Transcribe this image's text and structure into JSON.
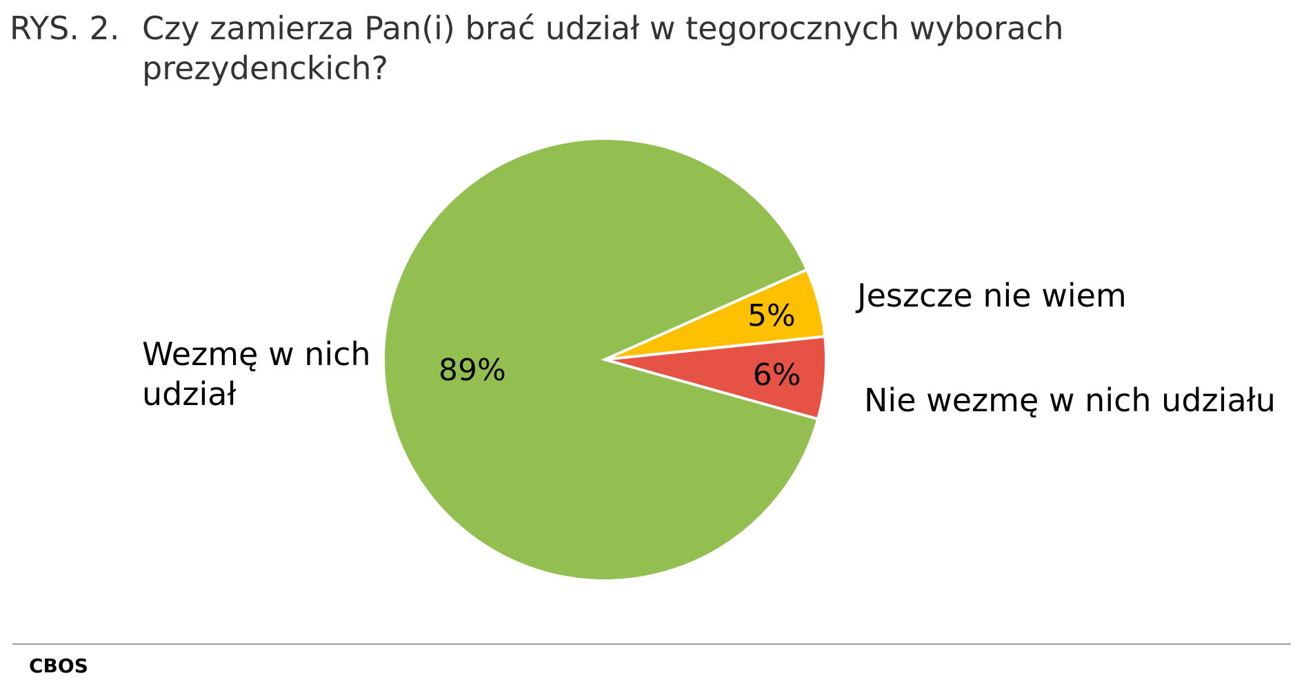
{
  "figure_label": "RYS. 2.",
  "chart_data": {
    "type": "pie",
    "title": "Czy zamierza Pan(i) brać udział w tegorocznych wyborach prezydenckich?",
    "categories": [
      "Jeszcze nie wiem",
      "Nie wezmę w nich udziału",
      "Wezmę w nich udział"
    ],
    "values": [
      5,
      6,
      89
    ],
    "value_labels": [
      "5%",
      "6%",
      "89%"
    ],
    "colors": [
      "#ffc000",
      "#e65244",
      "#93bf51"
    ]
  },
  "source": "CBOS"
}
